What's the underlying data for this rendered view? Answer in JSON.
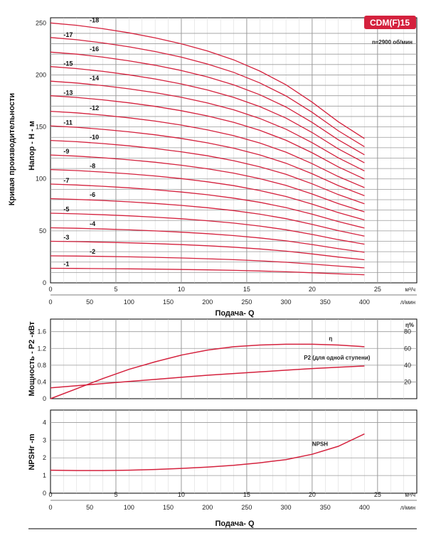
{
  "colors": {
    "curve": "#d4213d",
    "grid": "#9a9a9a",
    "minor": "#d6d6d6",
    "axis": "#000000",
    "badge": "#d4213d"
  },
  "badge": "CDM(F)15",
  "speed": "n≈2900 об/мин",
  "side_title": "Кривая производительности",
  "flow_axis": {
    "q_m3h_ticks": [
      "0",
      "5",
      "10",
      "15",
      "20",
      "25"
    ],
    "q_m3h_unit": "м³/ч",
    "q_lmin_ticks": [
      "0",
      "50",
      "100",
      "150",
      "200",
      "250",
      "300",
      "350",
      "400"
    ],
    "q_lmin_unit": "л/мин",
    "xlabel": "Подача- Q"
  },
  "chart_data": [
    {
      "type": "line",
      "name": "head",
      "ylabel": "Напор - H - м",
      "xlim": [
        0,
        28
      ],
      "ylim": [
        0,
        255
      ],
      "x_ticks": [
        0,
        5,
        10,
        15,
        20,
        25
      ],
      "y_ticks": [
        0,
        50,
        100,
        150,
        200,
        250
      ],
      "y_tick_labels": [
        "0",
        "50",
        "100",
        "150",
        "200",
        "250"
      ],
      "grid": true,
      "x": [
        0,
        2,
        4,
        6,
        8,
        10,
        12,
        14,
        16,
        18,
        20,
        22,
        24
      ],
      "shape": [
        1.0,
        0.991,
        0.978,
        0.962,
        0.943,
        0.92,
        0.892,
        0.858,
        0.815,
        0.762,
        0.695,
        0.62,
        0.555
      ],
      "stages": [
        {
          "label": "-1",
          "h0": 14
        },
        {
          "label": "-2",
          "h0": 26
        },
        {
          "label": "-3",
          "h0": 40
        },
        {
          "label": "-4",
          "h0": 53
        },
        {
          "label": "-5",
          "h0": 67
        },
        {
          "label": "-6",
          "h0": 81
        },
        {
          "label": "-7",
          "h0": 95
        },
        {
          "label": "-8",
          "h0": 109
        },
        {
          "label": "-9",
          "h0": 123
        },
        {
          "label": "-10",
          "h0": 137
        },
        {
          "label": "-11",
          "h0": 151
        },
        {
          "label": "-12",
          "h0": 165
        },
        {
          "label": "-13",
          "h0": 180
        },
        {
          "label": "-14",
          "h0": 194
        },
        {
          "label": "-15",
          "h0": 208
        },
        {
          "label": "-16",
          "h0": 222
        },
        {
          "label": "-17",
          "h0": 236
        },
        {
          "label": "-18",
          "h0": 250
        }
      ]
    },
    {
      "type": "line",
      "name": "power_efficiency",
      "ylabel": "Мощность - P2 -кВт",
      "right_label": "η%",
      "xlim": [
        0,
        28
      ],
      "ylim": [
        0,
        1.9
      ],
      "y_ticks": [
        0,
        0.4,
        0.8,
        1.2,
        1.6
      ],
      "y_tick_labels": [
        "0",
        "0.4",
        "0.8",
        "1.2",
        "1.6"
      ],
      "right_ticks": [
        20,
        40,
        60,
        80
      ],
      "right_tick_labels": [
        "20",
        "40",
        "60",
        "80"
      ],
      "right_lim": [
        0,
        95
      ],
      "grid": true,
      "series": [
        {
          "name": "η",
          "axis": "right",
          "x": [
            0,
            2,
            4,
            6,
            8,
            10,
            12,
            14,
            16,
            18,
            20,
            22,
            24
          ],
          "values": [
            0,
            12,
            24,
            35,
            44,
            52,
            58,
            62,
            64,
            65,
            65,
            64,
            62
          ]
        },
        {
          "name": "P2 (для одной ступени)",
          "axis": "left",
          "x": [
            0,
            2,
            4,
            6,
            8,
            10,
            12,
            14,
            16,
            18,
            20,
            22,
            24
          ],
          "values": [
            0.26,
            0.31,
            0.36,
            0.41,
            0.46,
            0.51,
            0.56,
            0.6,
            0.64,
            0.68,
            0.72,
            0.75,
            0.78
          ]
        }
      ]
    },
    {
      "type": "line",
      "name": "npsh",
      "ylabel": "NPSHr -m",
      "xlim": [
        0,
        28
      ],
      "ylim": [
        0,
        4.7
      ],
      "y_ticks": [
        0,
        1,
        2,
        3,
        4
      ],
      "y_tick_labels": [
        "0",
        "1",
        "2",
        "3",
        "4"
      ],
      "grid": true,
      "series": [
        {
          "name": "NPSH",
          "x": [
            0,
            2,
            4,
            6,
            8,
            10,
            12,
            14,
            16,
            18,
            20,
            22,
            24
          ],
          "values": [
            1.3,
            1.28,
            1.28,
            1.3,
            1.34,
            1.4,
            1.48,
            1.58,
            1.72,
            1.9,
            2.2,
            2.65,
            3.35
          ]
        }
      ]
    }
  ]
}
